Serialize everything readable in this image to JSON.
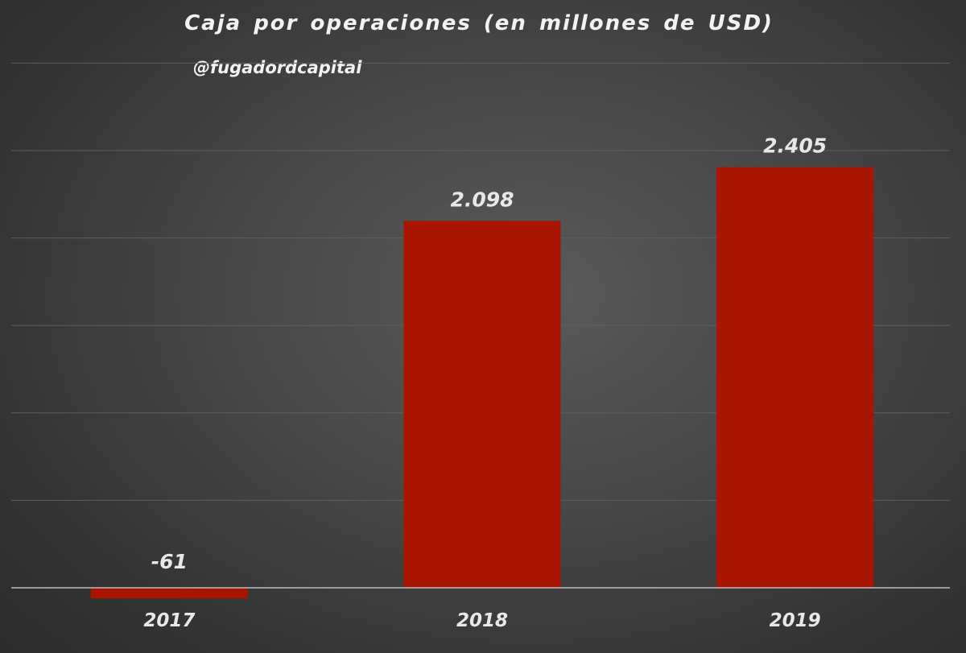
{
  "chart_data": {
    "type": "bar",
    "title": "Caja por operaciones (en millones de USD)",
    "subtitle": "@fugadordcapital",
    "categories": [
      "2017",
      "2018",
      "2019"
    ],
    "values": [
      -61,
      2098,
      2405
    ],
    "value_labels": [
      "-61",
      "2.098",
      "2.405"
    ],
    "xlabel": "",
    "ylabel": "",
    "ylim": [
      -100,
      3000
    ],
    "gridline_step": 500,
    "grid": true,
    "legend": "none",
    "bar_color": "#a81500"
  }
}
